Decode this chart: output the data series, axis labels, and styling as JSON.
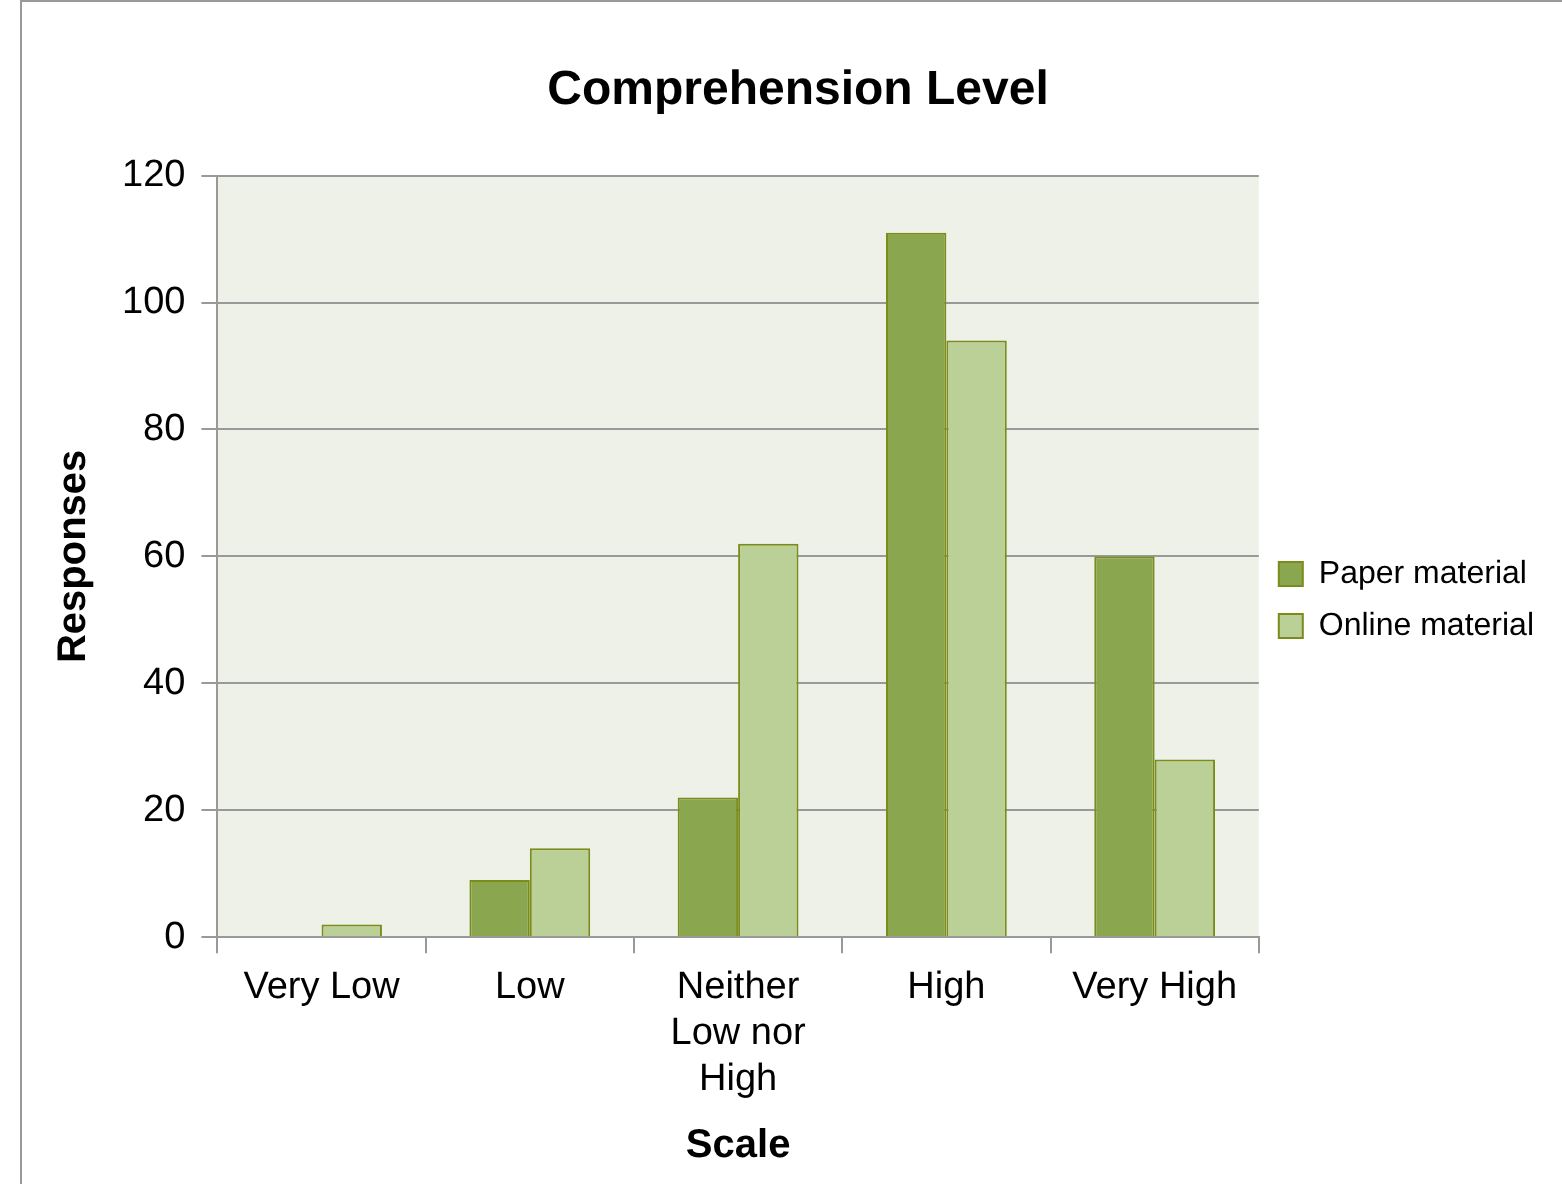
{
  "chart_data": {
    "type": "bar",
    "title": "Comprehension Level",
    "xlabel": "Scale",
    "ylabel": "Responses",
    "categories": [
      "Very Low",
      "Low",
      "Neither Low nor High",
      "High",
      "Very High"
    ],
    "series": [
      {
        "name": "Paper material",
        "color": "#8aa64e",
        "values": [
          0,
          9,
          22,
          111,
          60
        ]
      },
      {
        "name": "Online material",
        "color": "#bad097",
        "values": [
          2,
          14,
          62,
          94,
          28
        ]
      }
    ],
    "ylim": [
      0,
      120
    ],
    "yticks": [
      0,
      20,
      40,
      60,
      80,
      100,
      120
    ],
    "grid": "y",
    "legend": "right"
  }
}
